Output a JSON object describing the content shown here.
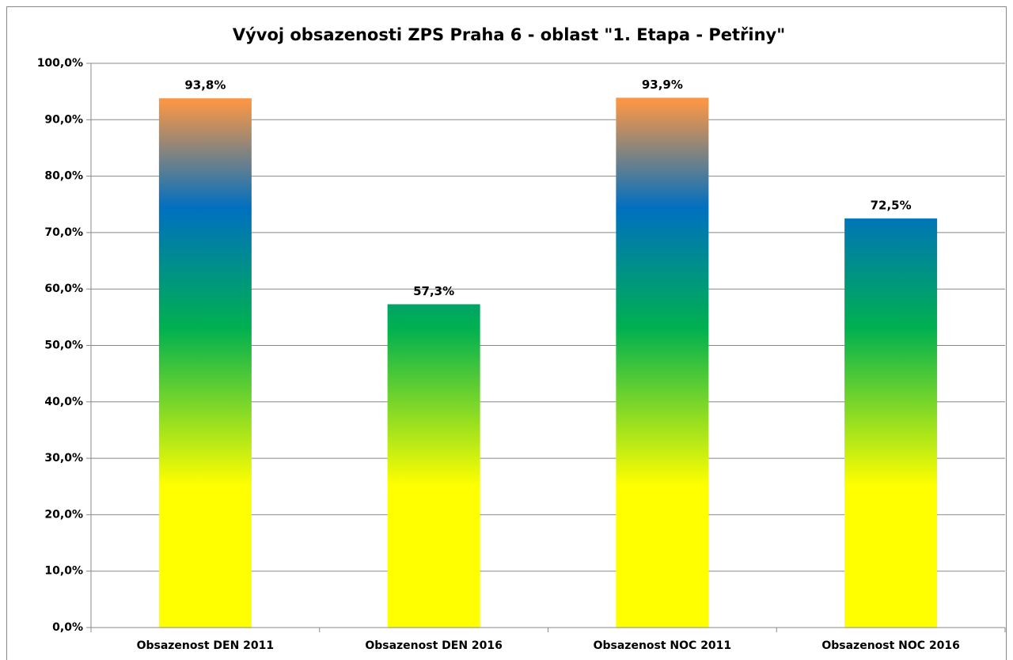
{
  "chart_data": {
    "type": "bar",
    "title": "Vývoj obsazenosti ZPS Praha 6 - oblast \"1. Etapa - Petřiny\"",
    "categories": [
      "Obsazenost DEN 2011",
      "Obsazenost DEN 2016",
      "Obsazenost NOC 2011",
      "Obsazenost NOC 2016"
    ],
    "values": [
      93.8,
      57.3,
      93.9,
      72.5
    ],
    "value_labels": [
      "93,8%",
      "57,3%",
      "93,9%",
      "72,5%"
    ],
    "color_stops": [
      "#ffff00",
      "#00b050",
      "#0070c0",
      "#f79646"
    ],
    "ylim": [
      0,
      100
    ],
    "yticks": [
      {
        "value": 0,
        "label": "0,0%"
      },
      {
        "value": 10,
        "label": "10,0%"
      },
      {
        "value": 20,
        "label": "20,0%"
      },
      {
        "value": 30,
        "label": "30,0%"
      },
      {
        "value": 40,
        "label": "40,0%"
      },
      {
        "value": 50,
        "label": "50,0%"
      },
      {
        "value": 60,
        "label": "60,0%"
      },
      {
        "value": 70,
        "label": "70,0%"
      },
      {
        "value": 80,
        "label": "80,0%"
      },
      {
        "value": 90,
        "label": "90,0%"
      },
      {
        "value": 100,
        "label": "100,0%"
      }
    ],
    "grid": true
  }
}
